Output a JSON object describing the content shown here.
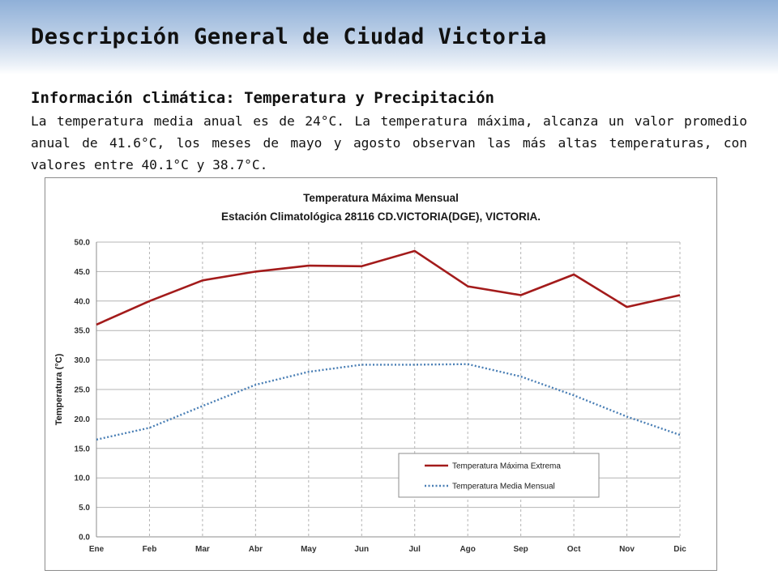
{
  "slide": {
    "title": "Descripción General de Ciudad Victoria",
    "section_heading": "Información climática: Temperatura y Precipitación",
    "body": "La temperatura media anual es de 24°C. La temperatura máxima, alcanza un valor promedio anual de 41.6°C, los meses de mayo y agosto observan las más altas temperaturas, con valores entre 40.1°C y 38.7°C."
  },
  "chart_data": {
    "type": "line",
    "title": "Temperatura Máxima Mensual",
    "subtitle": "Estación Climatológica 28116 CD.VICTORIA(DGE), VICTORIA.",
    "xlabel": "",
    "ylabel": "Temperatura (°C)",
    "ylim": [
      0,
      50
    ],
    "ytick_step": 5,
    "ytick_decimals": 1,
    "grid": true,
    "legend_position": "lower-right",
    "categories": [
      "Ene",
      "Feb",
      "Mar",
      "Abr",
      "May",
      "Jun",
      "Jul",
      "Ago",
      "Sep",
      "Oct",
      "Nov",
      "Dic"
    ],
    "series": [
      {
        "name": "Temperatura Máxima Extrema",
        "style": "solid",
        "color": "#a31b1b",
        "values": [
          36.0,
          40.0,
          43.5,
          45.0,
          46.0,
          45.9,
          48.5,
          42.5,
          41.0,
          44.5,
          39.0,
          41.0
        ]
      },
      {
        "name": "Temperatura Media Mensual",
        "style": "dotted",
        "color": "#4a7fb5",
        "values": [
          16.5,
          18.5,
          22.2,
          25.8,
          28.0,
          29.2,
          29.2,
          29.3,
          27.2,
          24.0,
          20.4,
          17.3
        ]
      }
    ]
  },
  "colors": {
    "banner_top": "#8fb0d8",
    "grid": "#b4b4b4",
    "axis": "#8c8c8c"
  }
}
